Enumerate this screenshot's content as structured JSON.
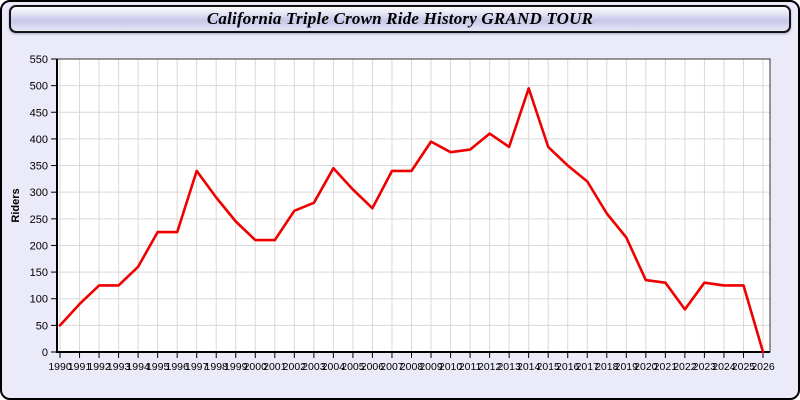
{
  "window": {
    "title": "California Triple Crown Ride History GRAND TOUR"
  },
  "chart_data": {
    "type": "line",
    "title": "California Triple Crown Ride History GRAND TOUR",
    "xlabel": "",
    "ylabel": "Riders",
    "x": [
      1990,
      1991,
      1992,
      1993,
      1994,
      1995,
      1996,
      1997,
      1998,
      1999,
      2000,
      2001,
      2002,
      2003,
      2004,
      2005,
      2006,
      2007,
      2008,
      2009,
      2010,
      2011,
      2012,
      2013,
      2014,
      2015,
      2016,
      2017,
      2018,
      2019,
      2020,
      2021,
      2022,
      2023,
      2024,
      2025,
      2026
    ],
    "series": [
      {
        "name": "Riders",
        "color": "#ee0000",
        "values": [
          50,
          90,
          125,
          125,
          160,
          225,
          225,
          340,
          290,
          245,
          210,
          210,
          265,
          280,
          345,
          305,
          270,
          340,
          340,
          395,
          375,
          380,
          410,
          385,
          495,
          385,
          350,
          320,
          260,
          215,
          135,
          130,
          80,
          130,
          125,
          125,
          0
        ]
      }
    ],
    "ylim": [
      0,
      550
    ],
    "ytick_step": 50,
    "grid": true,
    "legend": "none",
    "plot_bg": "#ffffff",
    "grid_color": "#d9d9d9",
    "axis_color": "#000000",
    "tick_label_color": "#000000"
  },
  "theme": {
    "page_bg": "#eaeaf8",
    "border_color": "#000000",
    "titlebar_top": "#ffffff",
    "titlebar_mid": "#c7c7e7",
    "titlebar_bottom": "#e7e7f9"
  }
}
